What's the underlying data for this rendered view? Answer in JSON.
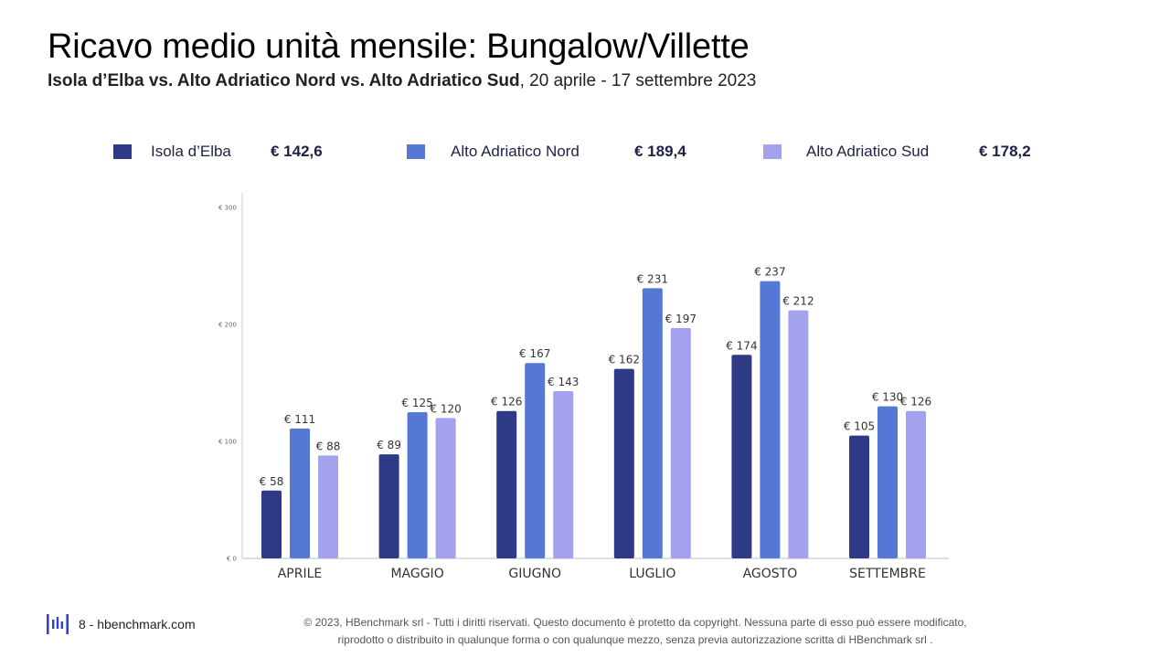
{
  "title": "Ricavo medio unità mensile: Bungalow/Villette",
  "subtitle": {
    "bold": "Isola d’Elba vs. Alto Adriatico Nord vs. Alto Adriatico Sud",
    "rest": ", 20 aprile - 17 settembre 2023"
  },
  "legend": [
    {
      "label": "Isola d’Elba",
      "avg": "€ 142,6",
      "color": "#2e3a85"
    },
    {
      "label": "Alto Adriatico Nord",
      "avg": "€ 189,4",
      "color": "#5578d4"
    },
    {
      "label": "Alto Adriatico Sud",
      "avg": "€ 178,2",
      "color": "#a4a2ee"
    }
  ],
  "chart_data": {
    "type": "bar",
    "categories": [
      "APRILE",
      "MAGGIO",
      "GIUGNO",
      "LUGLIO",
      "AGOSTO",
      "SETTEMBRE"
    ],
    "series": [
      {
        "name": "Isola d’Elba",
        "color": "#2e3a85",
        "values": [
          58,
          89,
          126,
          162,
          174,
          105
        ],
        "labels": [
          "€ 58",
          "€ 89",
          "€ 126",
          "€ 162",
          "€ 174",
          "€ 105"
        ]
      },
      {
        "name": "Alto Adriatico Nord",
        "color": "#5578d4",
        "values": [
          111,
          125,
          167,
          231,
          237,
          130
        ],
        "labels": [
          "€ 111",
          "€ 125",
          "€ 167",
          "€ 231",
          "€ 237",
          "€ 130"
        ]
      },
      {
        "name": "Alto Adriatico Sud",
        "color": "#a4a2ee",
        "values": [
          88,
          120,
          143,
          197,
          212,
          126
        ],
        "labels": [
          "€ 88",
          "€ 120",
          "€ 143",
          "€ 197",
          "€ 212",
          "€ 126"
        ]
      }
    ],
    "yticks": [
      0,
      100,
      200,
      300
    ],
    "ytick_labels": [
      "€ 0",
      "€ 100",
      "€ 200",
      "€ 300"
    ],
    "ylim": [
      0,
      300
    ],
    "grid": false
  },
  "footer": {
    "page": "8 - hbenchmark.com",
    "copyright_line1": "© 2023, HBenchmark srl - Tutti i diritti riservati. Questo documento è protetto da copyright. Nessuna parte di esso può essere modificato,",
    "copyright_line2": "riprodotto o distribuito in qualunque forma o con qualunque mezzo, senza previa autorizzazione scritta di HBenchmark srl ."
  }
}
